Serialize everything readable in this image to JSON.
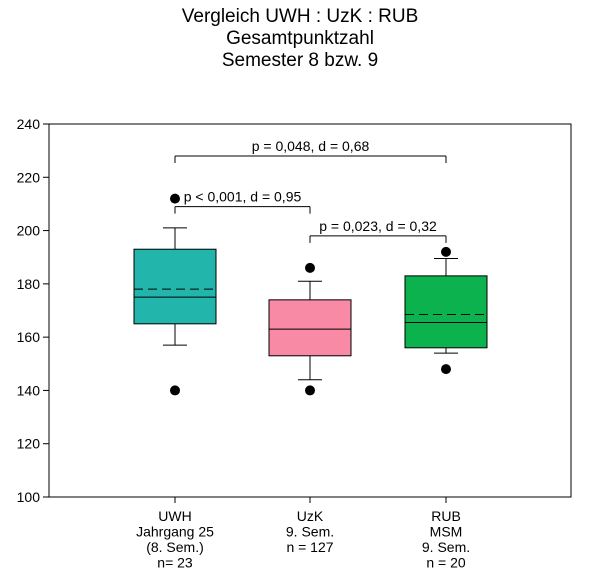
{
  "chart_data": {
    "type": "box",
    "title": [
      "Vergleich UWH : UzK : RUB",
      "Gesamtpunktzahl",
      "Semester 8 bzw. 9"
    ],
    "ylim": [
      100,
      240
    ],
    "yticks": [
      100,
      120,
      140,
      160,
      180,
      200,
      220,
      240
    ],
    "grid": false,
    "groups": [
      {
        "label": [
          "UWH",
          "Jahrgang 25",
          "(8. Sem.)",
          "n= 23"
        ],
        "color": "#22b5ab",
        "whisker_low": 157,
        "q1": 165,
        "median": 175,
        "mean": 178,
        "q3": 193,
        "whisker_high": 201,
        "outliers": [
          140,
          212
        ]
      },
      {
        "label": [
          "UzK",
          "9. Sem.",
          "n = 127"
        ],
        "color": "#f98aa6",
        "whisker_low": 144,
        "q1": 153,
        "median": 163,
        "q3": 174,
        "whisker_high": 181,
        "outliers": [
          140,
          186
        ]
      },
      {
        "label": [
          "RUB",
          "MSM",
          "9. Sem.",
          "n = 20"
        ],
        "color": "#0cb24e",
        "whisker_low": 154,
        "q1": 156,
        "median": 165.5,
        "mean": 168.5,
        "q3": 183,
        "whisker_high": 189.5,
        "outliers": [
          148,
          192
        ]
      }
    ],
    "annotations": [
      {
        "text": "p = 0,048, d = 0,68",
        "from": 0,
        "to": 2,
        "y": 228
      },
      {
        "text": "p < 0,001, d = 0,95",
        "from": 0,
        "to": 1,
        "y": 209
      },
      {
        "text": "p = 0,023, d = 0,32",
        "from": 1,
        "to": 2,
        "y": 198
      }
    ]
  }
}
